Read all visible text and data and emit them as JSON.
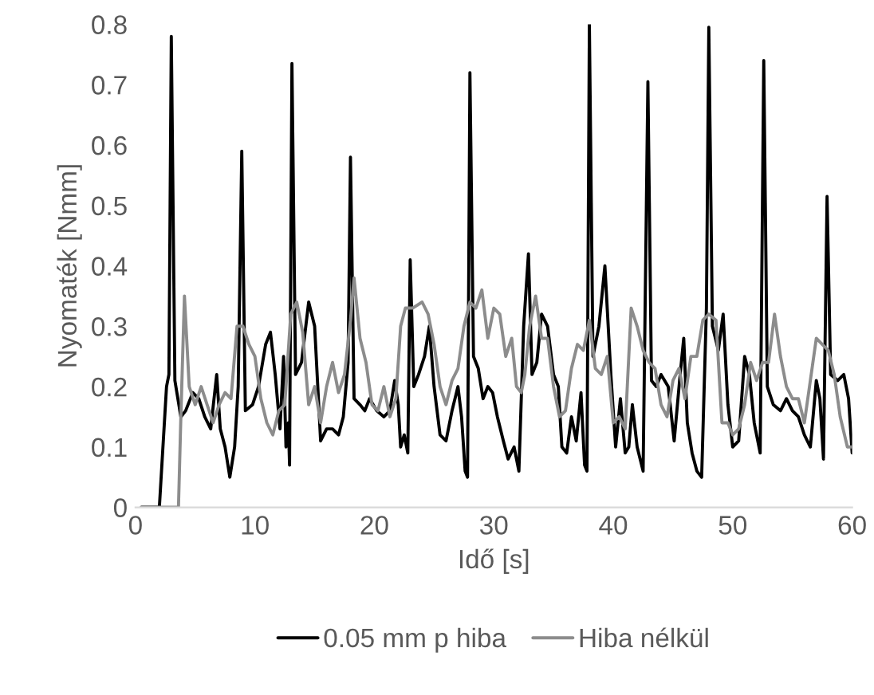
{
  "chart_data": {
    "type": "line",
    "xlabel": "Idő [s]",
    "ylabel": "Nyomaték [Nmm]",
    "xlim": [
      0,
      60
    ],
    "xticks": [
      0,
      10,
      20,
      30,
      40,
      50,
      60
    ],
    "ylim": [
      0,
      0.8
    ],
    "yticks": [
      0,
      0.1,
      0.2,
      0.3,
      0.4,
      0.5,
      0.6,
      0.7,
      0.8
    ],
    "grid": false,
    "legend": "bottom",
    "marker": "none",
    "line_style": "solid",
    "series": [
      {
        "name": "0.05 mm p hiba",
        "color": "#000000",
        "x": [
          0.5,
          2.0,
          2.6,
          2.8,
          3.0,
          3.3,
          3.8,
          4.2,
          4.8,
          5.3,
          5.8,
          6.3,
          6.8,
          7.1,
          7.5,
          7.9,
          8.3,
          8.6,
          8.9,
          9.2,
          9.8,
          10.3,
          10.9,
          11.3,
          11.7,
          12.1,
          12.4,
          12.6,
          12.8,
          12.9,
          13.1,
          13.4,
          13.9,
          14.5,
          15.0,
          15.5,
          16.0,
          16.5,
          17.0,
          17.4,
          17.8,
          18.0,
          18.3,
          18.8,
          19.2,
          19.6,
          20.2,
          20.8,
          21.3,
          21.7,
          22.0,
          22.2,
          22.5,
          22.8,
          23.0,
          23.3,
          23.7,
          24.2,
          24.6,
          25.0,
          25.5,
          26.0,
          26.5,
          27.0,
          27.3,
          27.6,
          27.8,
          28.0,
          28.3,
          28.7,
          29.1,
          29.5,
          29.9,
          30.3,
          30.8,
          31.2,
          31.7,
          32.1,
          32.5,
          32.9,
          33.2,
          33.6,
          34.0,
          34.5,
          35.0,
          35.4,
          35.7,
          36.1,
          36.5,
          36.9,
          37.3,
          37.6,
          37.8,
          38.0,
          38.3,
          38.8,
          39.3,
          39.8,
          40.2,
          40.6,
          41.0,
          41.3,
          41.6,
          42.0,
          42.5,
          42.9,
          43.2,
          43.6,
          44.0,
          44.6,
          45.1,
          45.6,
          45.9,
          46.2,
          46.6,
          47.0,
          47.4,
          47.8,
          48.0,
          48.3,
          48.8,
          49.2,
          49.6,
          50.0,
          50.5,
          51.0,
          51.4,
          51.8,
          52.3,
          52.6,
          52.9,
          53.4,
          54.0,
          54.5,
          55.0,
          55.5,
          56.0,
          56.5,
          57.0,
          57.3,
          57.6,
          57.9,
          58.2,
          58.8,
          59.3,
          59.7,
          60
        ],
        "values": [
          0,
          0,
          0.2,
          0.22,
          0.78,
          0.21,
          0.15,
          0.16,
          0.19,
          0.18,
          0.15,
          0.13,
          0.22,
          0.13,
          0.1,
          0.05,
          0.1,
          0.2,
          0.59,
          0.16,
          0.17,
          0.2,
          0.27,
          0.29,
          0.22,
          0.13,
          0.25,
          0.1,
          0.14,
          0.07,
          0.735,
          0.22,
          0.24,
          0.34,
          0.3,
          0.11,
          0.13,
          0.13,
          0.12,
          0.15,
          0.24,
          0.58,
          0.18,
          0.17,
          0.16,
          0.18,
          0.16,
          0.15,
          0.16,
          0.21,
          0.17,
          0.1,
          0.12,
          0.09,
          0.41,
          0.2,
          0.22,
          0.25,
          0.3,
          0.2,
          0.12,
          0.11,
          0.16,
          0.2,
          0.15,
          0.06,
          0.05,
          0.72,
          0.25,
          0.23,
          0.18,
          0.2,
          0.19,
          0.15,
          0.11,
          0.08,
          0.1,
          0.06,
          0.3,
          0.42,
          0.22,
          0.24,
          0.32,
          0.3,
          0.22,
          0.2,
          0.1,
          0.09,
          0.15,
          0.11,
          0.19,
          0.07,
          0.06,
          0.8,
          0.25,
          0.3,
          0.4,
          0.22,
          0.1,
          0.18,
          0.09,
          0.1,
          0.17,
          0.1,
          0.06,
          0.705,
          0.21,
          0.2,
          0.22,
          0.2,
          0.11,
          0.22,
          0.28,
          0.14,
          0.09,
          0.06,
          0.05,
          0.33,
          0.795,
          0.3,
          0.26,
          0.32,
          0.17,
          0.1,
          0.11,
          0.25,
          0.22,
          0.14,
          0.09,
          0.74,
          0.2,
          0.17,
          0.16,
          0.18,
          0.16,
          0.15,
          0.12,
          0.1,
          0.21,
          0.18,
          0.08,
          0.515,
          0.22,
          0.21,
          0.22,
          0.18,
          0.09
        ]
      },
      {
        "name": "Hiba nélkül",
        "color": "#8c8c8c",
        "x": [
          0.5,
          3.6,
          3.8,
          4.1,
          4.5,
          5.0,
          5.5,
          6.0,
          6.5,
          7.0,
          7.5,
          8.0,
          8.5,
          9.0,
          9.5,
          10.0,
          10.5,
          11.0,
          11.5,
          12.0,
          12.5,
          13.0,
          13.5,
          14.0,
          14.5,
          15.0,
          15.5,
          16.0,
          16.5,
          17.0,
          17.5,
          18.0,
          18.3,
          18.8,
          19.3,
          19.8,
          20.3,
          20.8,
          21.3,
          21.8,
          22.2,
          22.6,
          23.2,
          24.0,
          24.5,
          25.0,
          25.5,
          26.0,
          26.5,
          27.0,
          27.5,
          28.0,
          28.5,
          29.0,
          29.5,
          30.0,
          30.5,
          31.0,
          31.5,
          31.9,
          32.3,
          32.6,
          33.0,
          33.5,
          34.0,
          34.5,
          35.0,
          35.5,
          36.0,
          36.5,
          37.0,
          37.5,
          38.0,
          38.5,
          39.0,
          39.5,
          40.0,
          40.5,
          41.0,
          41.5,
          42.0,
          42.5,
          43.0,
          43.5,
          44.0,
          44.5,
          45.0,
          45.5,
          46.0,
          46.5,
          47.0,
          47.5,
          48.0,
          48.6,
          49.1,
          49.6,
          50.0,
          50.5,
          51.0,
          51.5,
          52.0,
          52.5,
          53.0,
          53.5,
          54.0,
          54.5,
          55.0,
          55.5,
          56.0,
          56.5,
          57.0,
          57.5,
          58.0,
          58.5,
          59.0,
          59.6,
          60
        ],
        "values": [
          0,
          0,
          0.15,
          0.35,
          0.2,
          0.17,
          0.2,
          0.17,
          0.14,
          0.17,
          0.19,
          0.18,
          0.3,
          0.3,
          0.27,
          0.25,
          0.18,
          0.14,
          0.12,
          0.16,
          0.17,
          0.32,
          0.34,
          0.29,
          0.17,
          0.2,
          0.14,
          0.2,
          0.24,
          0.19,
          0.22,
          0.31,
          0.38,
          0.28,
          0.24,
          0.17,
          0.16,
          0.2,
          0.15,
          0.18,
          0.3,
          0.33,
          0.33,
          0.34,
          0.32,
          0.27,
          0.2,
          0.17,
          0.21,
          0.23,
          0.3,
          0.34,
          0.33,
          0.36,
          0.28,
          0.33,
          0.32,
          0.25,
          0.28,
          0.2,
          0.19,
          0.22,
          0.3,
          0.35,
          0.28,
          0.28,
          0.2,
          0.15,
          0.16,
          0.23,
          0.27,
          0.26,
          0.31,
          0.23,
          0.22,
          0.25,
          0.14,
          0.15,
          0.13,
          0.33,
          0.3,
          0.26,
          0.24,
          0.23,
          0.17,
          0.15,
          0.21,
          0.23,
          0.18,
          0.25,
          0.25,
          0.31,
          0.32,
          0.31,
          0.14,
          0.14,
          0.12,
          0.13,
          0.17,
          0.24,
          0.21,
          0.24,
          0.24,
          0.32,
          0.25,
          0.2,
          0.18,
          0.18,
          0.14,
          0.21,
          0.28,
          0.27,
          0.26,
          0.22,
          0.15,
          0.1,
          0.1
        ]
      }
    ]
  }
}
